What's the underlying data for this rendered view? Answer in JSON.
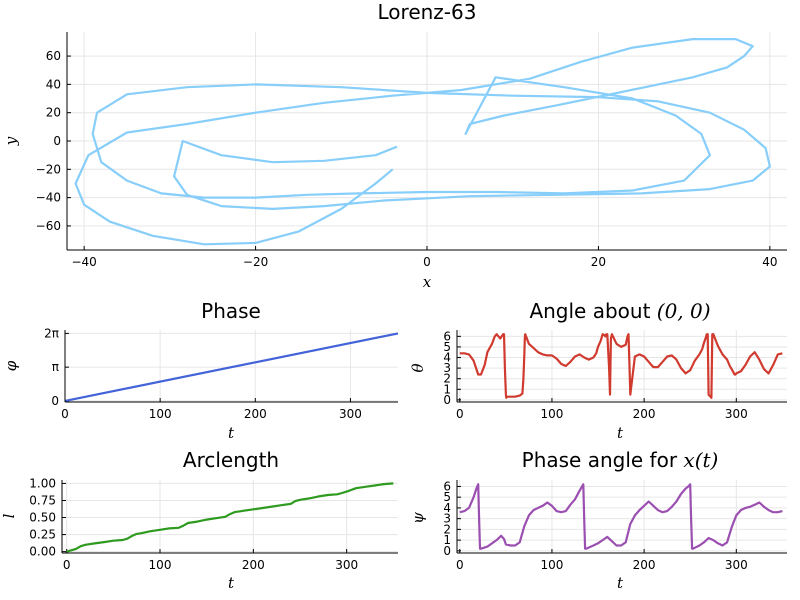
{
  "chart_data": [
    {
      "id": "lorenz",
      "type": "line",
      "title": "Lorenz-63",
      "xlabel": "x",
      "ylabel": "y",
      "xlim": [
        -42,
        42
      ],
      "ylim": [
        -77,
        77
      ],
      "xticks": [
        -40,
        -20,
        0,
        20,
        40
      ],
      "xtick_labels": [
        "−40",
        "−20",
        "0",
        "20",
        "40"
      ],
      "yticks": [
        -60,
        -40,
        -20,
        0,
        20,
        40,
        60
      ],
      "ytick_labels": [
        "−60",
        "−40",
        "−20",
        "0",
        "20",
        "40",
        "60"
      ],
      "grid": true,
      "color": "#87CEFA",
      "series": [
        {
          "x": [
            -3.5,
            -6,
            -12,
            -18,
            -24,
            -28.5,
            -29.5,
            -28,
            -24,
            -18,
            -12,
            -5,
            5,
            15,
            25,
            33,
            38,
            40,
            39.5,
            37,
            33,
            27,
            20,
            10,
            0,
            -10,
            -20,
            -28,
            -35,
            -38.5,
            -39,
            -38,
            -35,
            -31,
            -26,
            -20,
            -14,
            -8,
            0,
            8,
            16,
            24,
            30,
            33,
            32,
            29,
            24,
            16,
            8,
            4.5,
            5,
            9,
            15,
            23,
            31,
            35,
            37,
            38,
            36,
            31,
            24,
            18,
            12,
            4,
            -4,
            -12,
            -20,
            -28,
            -35,
            -39.5,
            -41,
            -40,
            -37,
            -32,
            -26,
            -20,
            -15,
            -10,
            -6,
            -4
          ],
          "y": [
            -4,
            -10,
            -14,
            -15,
            -10,
            0,
            -25,
            -38,
            -46,
            -48,
            -46,
            -42,
            -39,
            -38,
            -37,
            -34,
            -28,
            -18,
            -5,
            8,
            20,
            28,
            31,
            32,
            34,
            38,
            40,
            38,
            33,
            20,
            5,
            -15,
            -28,
            -37,
            -40,
            -40,
            -38,
            -37,
            -36,
            -36,
            -37,
            -35,
            -28,
            -10,
            5,
            18,
            30,
            38,
            45,
            5,
            12,
            18,
            25,
            35,
            45,
            52,
            60,
            67,
            72,
            72,
            66,
            56,
            44,
            36,
            32,
            27,
            20,
            12,
            6,
            -10,
            -30,
            -45,
            -57,
            -67,
            -73,
            -72,
            -64,
            -48,
            -30,
            -20
          ]
        }
      ]
    },
    {
      "id": "phase",
      "type": "line",
      "title": "Phase",
      "xlabel": "t",
      "ylabel": "φ",
      "xlim": [
        0,
        350
      ],
      "ylim": [
        -0.1,
        6.6
      ],
      "xticks": [
        0,
        100,
        200,
        300
      ],
      "xtick_labels": [
        "0",
        "100",
        "200",
        "300"
      ],
      "yticks": [
        0,
        3.14159,
        6.28318
      ],
      "ytick_labels": [
        "0",
        "π",
        "2π"
      ],
      "grid": true,
      "color": "#4363D8",
      "series": [
        {
          "x": [
            0,
            350
          ],
          "y": [
            0,
            6.28318
          ]
        }
      ]
    },
    {
      "id": "angle",
      "type": "line",
      "title": "Angle about (0, 0)",
      "xlabel": "t",
      "ylabel": "θ",
      "xlim": [
        -3,
        355
      ],
      "ylim": [
        -0.2,
        6.6
      ],
      "xticks": [
        0,
        100,
        200,
        300
      ],
      "xtick_labels": [
        "0",
        "100",
        "200",
        "300"
      ],
      "yticks": [
        0,
        1,
        2,
        3,
        4,
        5,
        6
      ],
      "ytick_labels": [
        "0",
        "1",
        "2",
        "3",
        "4",
        "5",
        "6"
      ],
      "grid": true,
      "color": "#D03A2F",
      "series": [
        {
          "x": [
            0,
            5,
            10,
            15,
            20,
            23,
            27,
            30,
            35,
            38,
            40,
            44,
            47,
            48,
            49,
            50,
            50.5,
            51,
            55,
            60,
            65,
            68,
            69,
            70,
            70.5,
            71,
            75,
            80,
            85,
            90,
            95,
            100,
            105,
            110,
            115,
            120,
            125,
            130,
            135,
            140,
            145,
            148,
            150,
            153,
            155,
            157,
            158,
            159,
            160,
            162,
            163,
            164,
            165,
            170,
            175,
            180,
            182,
            183,
            184,
            185,
            190,
            195,
            200,
            205,
            210,
            215,
            220,
            225,
            230,
            235,
            240,
            245,
            250,
            255,
            260,
            263,
            265,
            267,
            268,
            269,
            270,
            272,
            273,
            274,
            275,
            280,
            285,
            290,
            293,
            295,
            297,
            298,
            299,
            300,
            305,
            310,
            315,
            320,
            325,
            330,
            335,
            340,
            345,
            350
          ],
          "y": [
            4.4,
            4.4,
            4.3,
            3.7,
            2.4,
            2.4,
            3.3,
            4.5,
            5.3,
            6.0,
            6.2,
            5.8,
            6.2,
            6.2,
            3.0,
            0.5,
            0.2,
            0.3,
            0.3,
            0.3,
            0.4,
            0.6,
            2.0,
            4.2,
            5.8,
            6.2,
            5.3,
            4.9,
            4.5,
            4.3,
            4.2,
            4.2,
            3.9,
            3.4,
            3.2,
            3.6,
            4.1,
            4.3,
            4.0,
            3.8,
            4.0,
            4.4,
            5.0,
            5.6,
            6.2,
            6.1,
            6.0,
            6.2,
            6.2,
            3.0,
            0.5,
            5.8,
            6.2,
            5.3,
            5.0,
            5.2,
            6.0,
            6.2,
            3.5,
            0.5,
            4.1,
            4.3,
            4.1,
            3.6,
            3.1,
            3.1,
            3.6,
            4.1,
            4.2,
            3.8,
            3.0,
            2.5,
            2.8,
            3.7,
            4.3,
            4.8,
            5.4,
            5.9,
            6.2,
            6.2,
            0.5,
            0.3,
            0.2,
            6.2,
            6.2,
            5.1,
            4.3,
            3.8,
            3.2,
            2.9,
            2.6,
            2.4,
            2.4,
            2.5,
            2.7,
            3.3,
            4.1,
            4.5,
            3.8,
            2.9,
            2.5,
            3.3,
            4.3,
            4.4
          ]
        }
      ]
    },
    {
      "id": "arclength",
      "type": "line",
      "title": "Arclength",
      "xlabel": "t",
      "ylabel": "l",
      "xlim": [
        -5,
        355
      ],
      "ylim": [
        -0.02,
        1.05
      ],
      "xticks": [
        0,
        100,
        200,
        300
      ],
      "xtick_labels": [
        "0",
        "100",
        "200",
        "300"
      ],
      "yticks": [
        0,
        0.25,
        0.5,
        0.75,
        1.0
      ],
      "ytick_labels": [
        "0.00",
        "0.25",
        "0.50",
        "0.75",
        "1.00"
      ],
      "grid": true,
      "color": "#2E9A1F",
      "series": [
        {
          "x": [
            0,
            5,
            10,
            15,
            20,
            30,
            40,
            50,
            60,
            65,
            70,
            75,
            80,
            90,
            100,
            110,
            120,
            125,
            130,
            140,
            150,
            160,
            170,
            175,
            180,
            185,
            190,
            200,
            210,
            220,
            230,
            240,
            245,
            250,
            260,
            270,
            280,
            290,
            295,
            300,
            310,
            320,
            330,
            335,
            340,
            350
          ],
          "y": [
            0.0,
            0.02,
            0.04,
            0.08,
            0.1,
            0.12,
            0.14,
            0.16,
            0.17,
            0.19,
            0.23,
            0.26,
            0.27,
            0.3,
            0.32,
            0.34,
            0.35,
            0.38,
            0.42,
            0.44,
            0.47,
            0.49,
            0.51,
            0.55,
            0.58,
            0.59,
            0.6,
            0.62,
            0.64,
            0.66,
            0.68,
            0.7,
            0.74,
            0.76,
            0.78,
            0.81,
            0.83,
            0.84,
            0.86,
            0.88,
            0.93,
            0.95,
            0.97,
            0.98,
            0.99,
            1.0
          ]
        }
      ]
    },
    {
      "id": "phase_x",
      "type": "line",
      "title": "Phase angle for x(t)",
      "xlabel": "t",
      "ylabel": "ψ",
      "xlim": [
        -3,
        355
      ],
      "ylim": [
        -0.2,
        6.6
      ],
      "xticks": [
        0,
        100,
        200,
        300
      ],
      "xtick_labels": [
        "0",
        "100",
        "200",
        "300"
      ],
      "yticks": [
        0,
        1,
        2,
        3,
        4,
        5,
        6
      ],
      "ytick_labels": [
        "0",
        "1",
        "2",
        "3",
        "4",
        "5",
        "6"
      ],
      "grid": true,
      "color": "#9B4FB0",
      "series": [
        {
          "x": [
            0,
            5,
            10,
            15,
            18,
            20,
            21,
            22,
            23,
            30,
            35,
            40,
            45,
            48,
            50,
            55,
            60,
            65,
            70,
            75,
            80,
            85,
            90,
            95,
            100,
            105,
            110,
            115,
            120,
            125,
            130,
            134,
            135,
            136,
            137,
            145,
            150,
            155,
            160,
            165,
            170,
            175,
            180,
            185,
            190,
            195,
            200,
            205,
            210,
            215,
            220,
            225,
            230,
            235,
            240,
            245,
            248,
            250,
            251,
            252,
            253,
            260,
            265,
            270,
            275,
            280,
            285,
            290,
            295,
            300,
            305,
            310,
            315,
            320,
            325,
            330,
            335,
            340,
            345,
            350
          ],
          "y": [
            3.6,
            3.7,
            4.0,
            5.0,
            5.8,
            6.2,
            3.0,
            0.2,
            0.2,
            0.4,
            0.7,
            1.0,
            1.4,
            1.1,
            0.6,
            0.5,
            0.5,
            0.8,
            2.3,
            3.3,
            3.8,
            4.0,
            4.2,
            4.5,
            4.2,
            3.7,
            3.6,
            3.7,
            4.3,
            4.8,
            5.6,
            6.2,
            3.0,
            0.2,
            0.2,
            0.5,
            0.7,
            1.0,
            1.3,
            0.9,
            0.5,
            0.5,
            0.8,
            2.5,
            3.3,
            3.8,
            4.2,
            4.6,
            4.2,
            3.8,
            3.6,
            3.7,
            4.1,
            4.6,
            5.3,
            5.8,
            6.0,
            6.2,
            3.0,
            0.2,
            0.2,
            0.5,
            0.8,
            1.2,
            1.0,
            0.7,
            0.5,
            0.8,
            2.2,
            3.3,
            3.8,
            4.0,
            4.1,
            4.3,
            4.5,
            4.1,
            3.8,
            3.6,
            3.6,
            3.7
          ]
        }
      ]
    }
  ]
}
